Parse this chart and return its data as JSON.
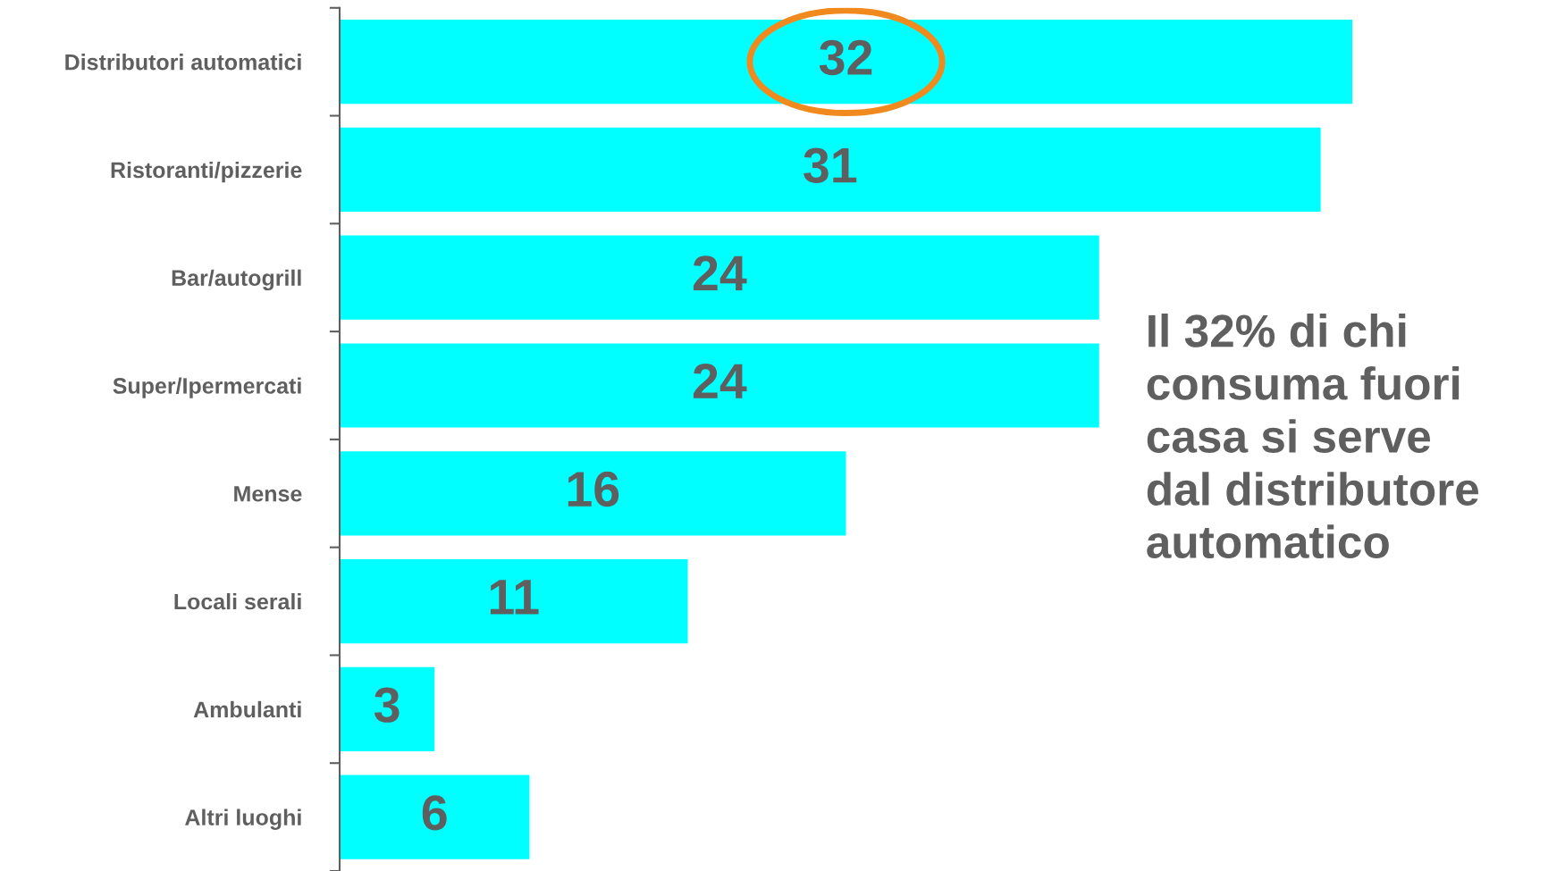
{
  "chart_data": {
    "type": "bar",
    "orientation": "horizontal",
    "data_labels": true,
    "categories": [
      "Distributori automatici",
      "Ristoranti/pizzerie",
      "Bar/autogrill",
      "Super/Ipermercati",
      "Mense",
      "Locali serali",
      "Ambulanti",
      "Altri luoghi"
    ],
    "values": [
      32,
      31,
      24,
      24,
      16,
      11,
      3,
      6
    ],
    "color": "#00ffff",
    "grid": false,
    "legend": false,
    "tick_labels": "y",
    "annotations": [
      "Il 32% di chi\nconsuma fuori\ncasa si serve\ndal distributore\nautomatico"
    ]
  }
}
